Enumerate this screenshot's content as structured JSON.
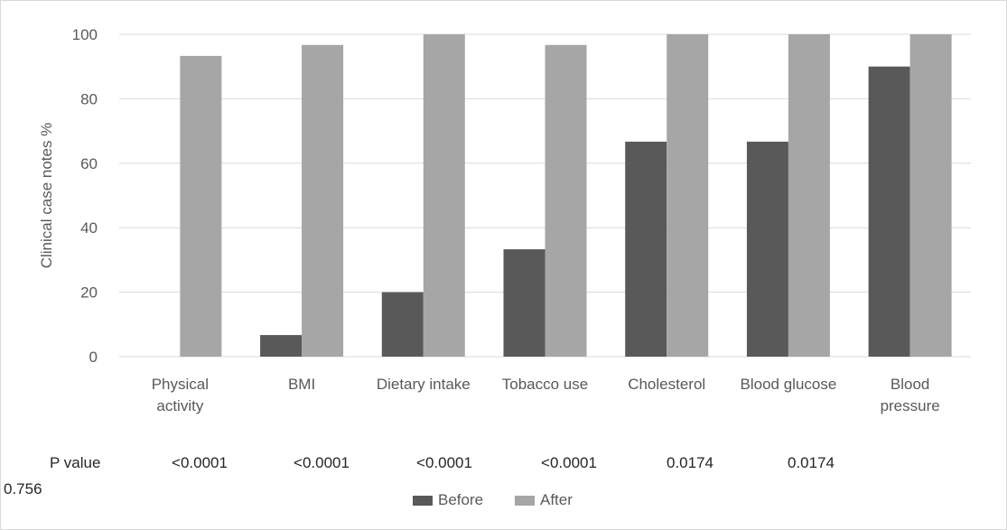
{
  "chart_data": {
    "type": "bar",
    "categories": [
      [
        "Physical",
        "activity"
      ],
      [
        "BMI"
      ],
      [
        "Dietary intake"
      ],
      [
        "Tobacco use"
      ],
      [
        "Cholesterol"
      ],
      [
        "Blood glucose"
      ],
      [
        "Blood",
        "pressure"
      ]
    ],
    "series": [
      {
        "name": "Before",
        "color": "#595959",
        "values": [
          0,
          6.7,
          20,
          33.3,
          66.7,
          66.7,
          90
        ]
      },
      {
        "name": "After",
        "color": "#a6a6a6",
        "values": [
          93.3,
          96.7,
          100,
          96.7,
          100,
          100,
          100
        ]
      }
    ],
    "ylabel": "Clinical case notes %",
    "ylim": [
      0,
      100
    ],
    "yticks": [
      0,
      20,
      40,
      60,
      80,
      100
    ],
    "grid": true,
    "legend_position": "bottom",
    "p_value_label": "P value",
    "p_values": [
      "<0.0001",
      "<0.0001",
      "<0.0001",
      "<0.0001",
      "0.0174",
      "0.0174",
      "0.756"
    ]
  }
}
